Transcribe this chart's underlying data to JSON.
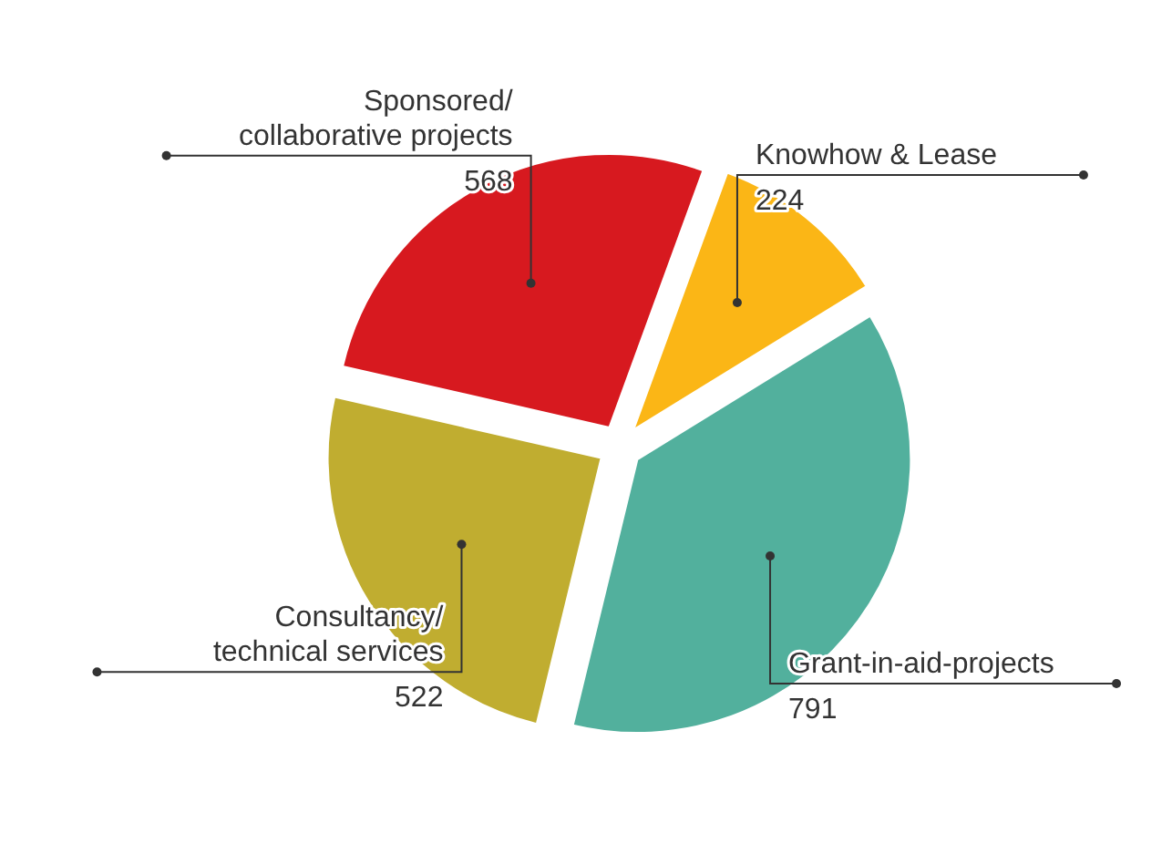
{
  "chart_data": {
    "type": "pie",
    "categories": [
      "Knowhow & Lease",
      "Grant-in-aid-projects",
      "Consultancy/ technical services",
      "Sponsored/ collaborative projects"
    ],
    "values": [
      224,
      791,
      522,
      568
    ],
    "colors": [
      "#fbb616",
      "#52b09d",
      "#c0ad30",
      "#d7191f"
    ],
    "data_labels": true
  }
}
